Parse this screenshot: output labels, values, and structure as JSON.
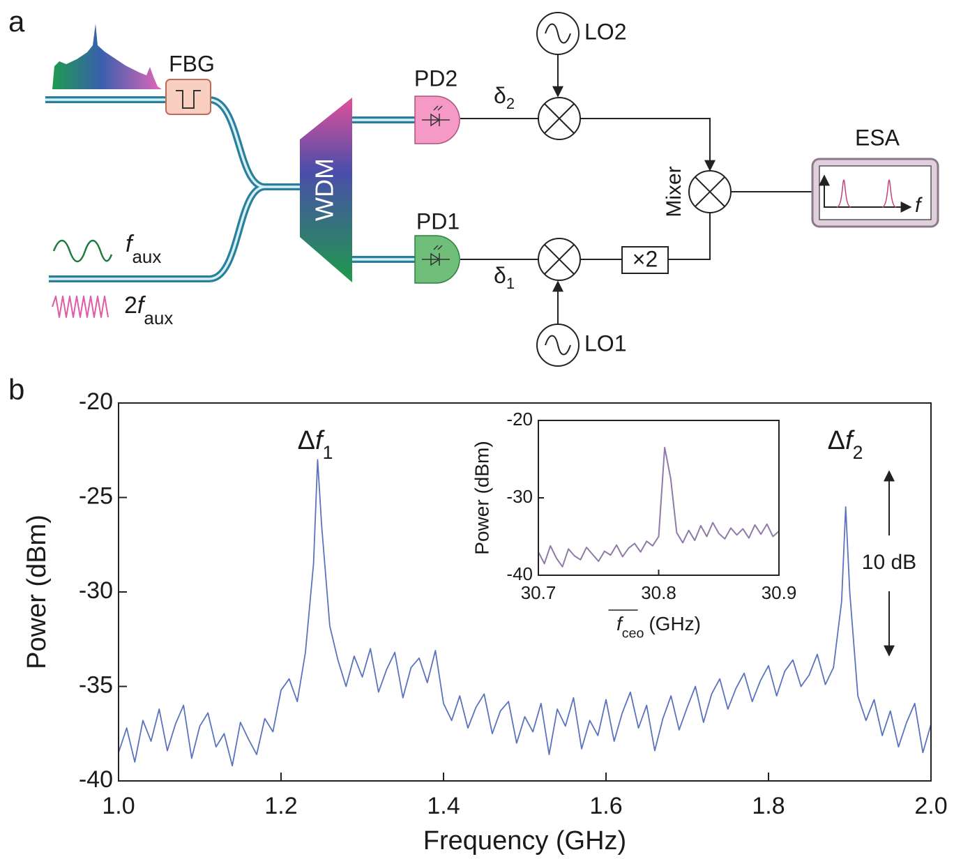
{
  "diagram": {
    "label": "a",
    "fbg": "FBG",
    "wdm": "WDM",
    "pd2": "PD2",
    "pd1": "PD1",
    "lo2": "LO2",
    "lo1": "LO1",
    "mixer": "Mixer",
    "esa": "ESA",
    "esa_axis": "f",
    "multiplier": "×2",
    "delta2": {
      "symbol": "δ",
      "subscript": "2"
    },
    "delta1": {
      "symbol": "δ",
      "subscript": "1"
    },
    "aux1": {
      "symbol": "f",
      "subscript": "aux"
    },
    "aux2": {
      "prefix": "2",
      "symbol": "f",
      "subscript": "aux"
    }
  },
  "chart_data": [
    {
      "type": "line",
      "panel_label": "b",
      "xlabel": "Frequency (GHz)",
      "ylabel": "Power (dBm)",
      "xlim": [
        1.0,
        2.0
      ],
      "ylim": [
        -40,
        -20
      ],
      "xticks": [
        {
          "value": 1.0,
          "label": "1.0"
        },
        1.2,
        1.4,
        1.6,
        1.8,
        {
          "value": 2.0,
          "label": "2.0"
        }
      ],
      "yticks": [
        -20,
        -25,
        -30,
        -35,
        -40
      ],
      "annotations": [
        {
          "prefix": "Δ",
          "symbol": "f",
          "subscript": "1"
        },
        {
          "prefix": "Δ",
          "symbol": "f",
          "subscript": "2"
        },
        {
          "text": "10 dB"
        }
      ],
      "series": [
        {
          "color": "#5a73bf",
          "x": [
            1.0,
            1.01,
            1.02,
            1.03,
            1.04,
            1.05,
            1.06,
            1.07,
            1.08,
            1.09,
            1.1,
            1.11,
            1.12,
            1.13,
            1.14,
            1.15,
            1.16,
            1.17,
            1.18,
            1.19,
            1.2,
            1.21,
            1.22,
            1.23,
            1.24,
            1.245,
            1.25,
            1.26,
            1.27,
            1.28,
            1.29,
            1.3,
            1.31,
            1.32,
            1.33,
            1.34,
            1.35,
            1.36,
            1.37,
            1.38,
            1.39,
            1.4,
            1.41,
            1.42,
            1.43,
            1.44,
            1.45,
            1.46,
            1.47,
            1.48,
            1.49,
            1.5,
            1.51,
            1.52,
            1.53,
            1.54,
            1.55,
            1.56,
            1.57,
            1.58,
            1.59,
            1.6,
            1.61,
            1.62,
            1.63,
            1.64,
            1.65,
            1.66,
            1.67,
            1.68,
            1.69,
            1.7,
            1.71,
            1.72,
            1.73,
            1.74,
            1.75,
            1.76,
            1.77,
            1.78,
            1.79,
            1.8,
            1.81,
            1.82,
            1.83,
            1.84,
            1.85,
            1.86,
            1.87,
            1.88,
            1.89,
            1.895,
            1.9,
            1.91,
            1.92,
            1.93,
            1.94,
            1.95,
            1.96,
            1.97,
            1.98,
            1.99,
            2.0
          ],
          "values": [
            -38.5,
            -37.2,
            -39.0,
            -36.8,
            -37.9,
            -36.2,
            -38.4,
            -37.0,
            -36.0,
            -38.8,
            -37.1,
            -36.4,
            -38.2,
            -37.5,
            -39.2,
            -36.9,
            -37.8,
            -38.6,
            -36.7,
            -37.4,
            -35.2,
            -34.6,
            -35.8,
            -33.2,
            -28.5,
            -23.0,
            -26.5,
            -31.8,
            -33.6,
            -35.0,
            -33.4,
            -34.5,
            -33.0,
            -35.3,
            -34.1,
            -33.2,
            -35.6,
            -34.0,
            -33.5,
            -34.8,
            -33.1,
            -35.9,
            -36.8,
            -35.5,
            -37.2,
            -36.1,
            -35.4,
            -37.5,
            -36.3,
            -35.8,
            -38.0,
            -36.6,
            -37.4,
            -35.9,
            -38.6,
            -36.2,
            -37.1,
            -35.6,
            -38.3,
            -36.8,
            -37.6,
            -35.7,
            -37.9,
            -36.4,
            -35.3,
            -37.2,
            -36.0,
            -38.4,
            -36.7,
            -35.5,
            -37.3,
            -36.1,
            -35.0,
            -36.9,
            -35.4,
            -34.6,
            -36.2,
            -35.1,
            -34.3,
            -35.8,
            -34.7,
            -33.9,
            -35.5,
            -34.2,
            -33.6,
            -35.0,
            -34.4,
            -33.3,
            -34.9,
            -34.0,
            -30.5,
            -25.5,
            -30.0,
            -35.5,
            -36.8,
            -35.7,
            -37.6,
            -36.3,
            -38.2,
            -36.9,
            -35.9,
            -38.5,
            -37.0
          ]
        }
      ]
    },
    {
      "type": "line",
      "xlabel": {
        "symbol": "f",
        "subscript": "ceo",
        "text": "(GHz)"
      },
      "ylabel": "Power (dBm)",
      "xlim": [
        30.7,
        30.9
      ],
      "ylim": [
        -40,
        -20
      ],
      "xticks": [
        30.7,
        30.8,
        30.9
      ],
      "yticks": [
        -20,
        -30,
        -40
      ],
      "series": [
        {
          "color": "#8f7aa9",
          "x": [
            30.7,
            30.705,
            30.71,
            30.715,
            30.72,
            30.725,
            30.73,
            30.735,
            30.74,
            30.745,
            30.75,
            30.755,
            30.76,
            30.765,
            30.77,
            30.775,
            30.78,
            30.785,
            30.79,
            30.795,
            30.8,
            30.805,
            30.81,
            30.815,
            30.82,
            30.825,
            30.83,
            30.835,
            30.84,
            30.845,
            30.85,
            30.855,
            30.86,
            30.865,
            30.87,
            30.875,
            30.88,
            30.885,
            30.89,
            30.895,
            30.9
          ],
          "values": [
            -37.0,
            -38.5,
            -36.2,
            -37.8,
            -38.9,
            -36.6,
            -37.5,
            -38.0,
            -36.4,
            -37.3,
            -38.2,
            -36.9,
            -37.4,
            -36.1,
            -37.6,
            -36.5,
            -35.9,
            -37.0,
            -35.6,
            -36.2,
            -35.0,
            -23.5,
            -27.5,
            -34.5,
            -35.8,
            -34.2,
            -35.5,
            -33.6,
            -35.0,
            -33.2,
            -34.6,
            -35.3,
            -33.9,
            -34.8,
            -34.0,
            -35.2,
            -33.5,
            -34.7,
            -33.4,
            -35.0,
            -34.3
          ]
        }
      ]
    }
  ]
}
